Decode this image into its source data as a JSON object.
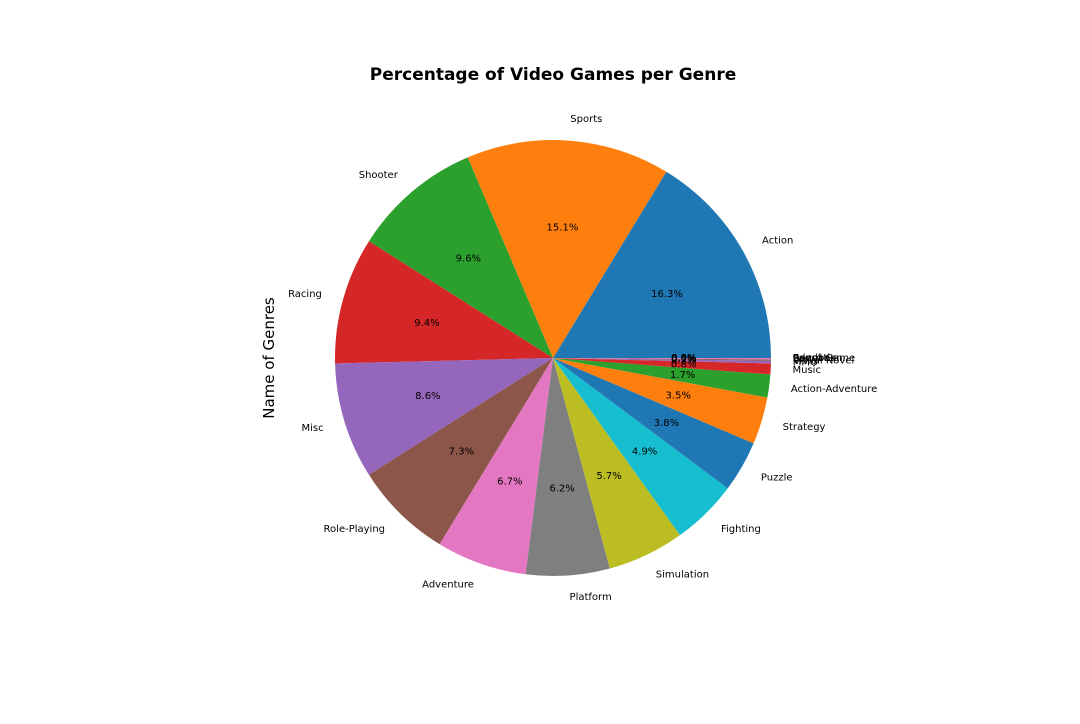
{
  "chart_data": {
    "type": "pie",
    "title": "Percentage of Video Games per Genre",
    "ylabel": "Name of Genres",
    "xlabel": "",
    "start_angle_deg": 0,
    "direction": "counterclockwise",
    "slices": [
      {
        "label": "Action",
        "value": 16.3,
        "pct_text": "16.3%",
        "color": "#1f77b4"
      },
      {
        "label": "Sports",
        "value": 15.1,
        "pct_text": "15.1%",
        "color": "#ff7f0e"
      },
      {
        "label": "Shooter",
        "value": 9.6,
        "pct_text": "9.6%",
        "color": "#2ca02c"
      },
      {
        "label": "Racing",
        "value": 9.4,
        "pct_text": "9.4%",
        "color": "#d62728"
      },
      {
        "label": "Misc",
        "value": 8.6,
        "pct_text": "8.6%",
        "color": "#9467bd"
      },
      {
        "label": "Role-Playing",
        "value": 7.3,
        "pct_text": "7.3%",
        "color": "#8c564b"
      },
      {
        "label": "Adventure",
        "value": 6.7,
        "pct_text": "6.7%",
        "color": "#e377c2"
      },
      {
        "label": "Platform",
        "value": 6.2,
        "pct_text": "6.2%",
        "color": "#7f7f7f"
      },
      {
        "label": "Simulation",
        "value": 5.7,
        "pct_text": "5.7%",
        "color": "#bcbd22"
      },
      {
        "label": "Fighting",
        "value": 4.9,
        "pct_text": "4.9%",
        "color": "#17becf"
      },
      {
        "label": "Puzzle",
        "value": 3.8,
        "pct_text": "3.8%",
        "color": "#1f77b4"
      },
      {
        "label": "Strategy",
        "value": 3.5,
        "pct_text": "3.5%",
        "color": "#ff7f0e"
      },
      {
        "label": "Action-Adventure",
        "value": 1.7,
        "pct_text": "1.7%",
        "color": "#2ca02c"
      },
      {
        "label": "Music",
        "value": 0.8,
        "pct_text": "0.8%",
        "color": "#d62728"
      },
      {
        "label": "MMO",
        "value": 0.2,
        "pct_text": "0.2%",
        "color": "#9467bd"
      },
      {
        "label": "Visual Novel",
        "value": 0.1,
        "pct_text": "0.1%",
        "color": "#8c564b"
      },
      {
        "label": "Party",
        "value": 0.1,
        "pct_text": "0.1%",
        "color": "#e377c2"
      },
      {
        "label": "Board Game",
        "value": 0.0,
        "pct_text": "0.0%",
        "color": "#7f7f7f"
      },
      {
        "label": "Education",
        "value": 0.0,
        "pct_text": "0.0%",
        "color": "#bcbd22"
      },
      {
        "label": "Sandbox",
        "value": 0.0,
        "pct_text": "0.0%",
        "color": "#17becf"
      }
    ]
  }
}
